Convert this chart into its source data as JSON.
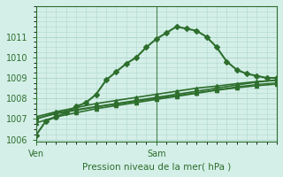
{
  "title": "",
  "xlabel": "Pression niveau de la mer( hPa )",
  "ylabel": "",
  "bg_color": "#d4efe8",
  "grid_color": "#b0d8cc",
  "line_color": "#2d6e2d",
  "axis_color": "#2d6e2d",
  "text_color": "#2d6e2d",
  "ylim": [
    1006,
    1012
  ],
  "xlim": [
    0,
    48
  ],
  "xticks": [
    0,
    24
  ],
  "xticklabels": [
    "Ven",
    "Sam"
  ],
  "yticks": [
    1006,
    1007,
    1008,
    1009,
    1010,
    1011
  ],
  "vline_x": 24,
  "series": [
    {
      "x": [
        0,
        2,
        4,
        6,
        8,
        10,
        12,
        14,
        16,
        18,
        20,
        22,
        24,
        26,
        28,
        30,
        32,
        34,
        36,
        38,
        40,
        42,
        44,
        46,
        48
      ],
      "y": [
        1006.2,
        1006.9,
        1007.1,
        1007.3,
        1007.6,
        1007.8,
        1008.2,
        1008.9,
        1009.3,
        1009.7,
        1010.0,
        1010.5,
        1010.9,
        1011.2,
        1011.5,
        1011.4,
        1011.3,
        1011.0,
        1010.5,
        1009.8,
        1009.4,
        1009.2,
        1009.1,
        1009.0,
        1009.0
      ],
      "marker": "D",
      "lw": 1.5
    },
    {
      "x": [
        0,
        4,
        8,
        12,
        16,
        20,
        24,
        28,
        32,
        36,
        40,
        44,
        48
      ],
      "y": [
        1007.0,
        1007.3,
        1007.45,
        1007.6,
        1007.75,
        1007.9,
        1008.05,
        1008.2,
        1008.35,
        1008.5,
        1008.65,
        1008.8,
        1008.9
      ],
      "marker": "^",
      "lw": 1.2
    },
    {
      "x": [
        0,
        4,
        8,
        12,
        16,
        20,
        24,
        28,
        32,
        36,
        40,
        44,
        48
      ],
      "y": [
        1007.1,
        1007.35,
        1007.55,
        1007.75,
        1007.9,
        1008.05,
        1008.2,
        1008.35,
        1008.5,
        1008.6,
        1008.72,
        1008.82,
        1008.88
      ],
      "marker": "^",
      "lw": 1.2
    },
    {
      "x": [
        0,
        4,
        8,
        12,
        16,
        20,
        24,
        28,
        32,
        36,
        40,
        44,
        48
      ],
      "y": [
        1006.8,
        1007.1,
        1007.3,
        1007.5,
        1007.65,
        1007.8,
        1007.95,
        1008.1,
        1008.25,
        1008.4,
        1008.52,
        1008.62,
        1008.7
      ],
      "marker": "^",
      "lw": 1.2
    },
    {
      "x": [
        0,
        4,
        8,
        12,
        16,
        20,
        24,
        28,
        32,
        36,
        40,
        44,
        48
      ],
      "y": [
        1007.0,
        1007.25,
        1007.42,
        1007.58,
        1007.72,
        1007.86,
        1008.0,
        1008.14,
        1008.28,
        1008.42,
        1008.56,
        1008.68,
        1008.76
      ],
      "marker": "^",
      "lw": 1.0
    }
  ]
}
